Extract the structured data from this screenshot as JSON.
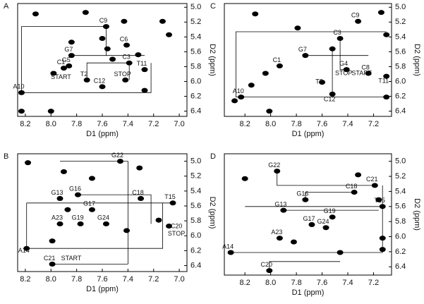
{
  "chart_data": [
    {
      "type": "scatter",
      "panel": "A",
      "xlabel": "D1 (ppm)",
      "ylabel": "D2 (ppm)",
      "color": "#000000",
      "xlim": [
        8.26,
        6.94
      ],
      "ylim": [
        4.95,
        6.47
      ],
      "xticks": [
        8.2,
        {
          "value": 8,
          "label": "8.0"
        },
        7.8,
        7.6,
        7.4,
        7.2,
        {
          "value": 7,
          "label": "7.0"
        }
      ],
      "yticks": [
        {
          "value": 5,
          "label": "5.0"
        },
        5.2,
        5.4,
        5.6,
        5.8,
        {
          "value": 6,
          "label": "6.0"
        },
        6.2,
        6.4
      ],
      "x": [
        8.23,
        8.0,
        8.23,
        7.98,
        7.9,
        7.84,
        7.86,
        7.57,
        7.56,
        7.41,
        7.39,
        7.32,
        7.27,
        7.6,
        7.72,
        7.42,
        7.27,
        7.08,
        7.13,
        7.43,
        7.73,
        8.12,
        7.84,
        7.6,
        7.52
      ],
      "y": [
        6.4,
        6.4,
        6.15,
        5.89,
        5.82,
        5.65,
        5.79,
        5.26,
        5.56,
        5.51,
        5.75,
        5.64,
        5.84,
        6.07,
        5.98,
        5.98,
        6.12,
        5.37,
        5.19,
        5.19,
        5.07,
        5.09,
        5.47,
        5.42,
        5.7
      ],
      "walk": {
        "x": [
          8.23,
          8.23,
          7.57,
          7.57,
          null,
          7.84,
          7.27,
          null,
          8.23,
          7.22,
          7.22,
          null,
          7.72,
          7.72,
          7.39,
          7.39
        ],
        "y": [
          6.15,
          5.26,
          5.26,
          5.65,
          null,
          5.65,
          5.65,
          null,
          6.15,
          6.15,
          5.75,
          null,
          5.98,
          5.75,
          5.75,
          5.98
        ]
      },
      "labels": [
        {
          "text": "A10",
          "x": 8.23,
          "y": 6.15
        },
        {
          "text": "C9",
          "x": 7.57,
          "y": 5.26
        },
        {
          "text": "G7",
          "x": 7.84,
          "y": 5.65
        },
        {
          "text": "C1",
          "x": 7.9,
          "y": 5.82
        },
        {
          "text": "G5",
          "x": 7.86,
          "y": 5.79
        },
        {
          "text": "C6",
          "x": 7.41,
          "y": 5.51
        },
        {
          "text": "C3",
          "x": 7.39,
          "y": 5.75
        },
        {
          "text": "T11",
          "x": 7.27,
          "y": 5.84
        },
        {
          "text": "T2",
          "x": 7.72,
          "y": 5.98
        },
        {
          "text": "C12",
          "x": 7.6,
          "y": 6.07
        },
        {
          "text": "START",
          "x": 7.9,
          "y": 6.02
        },
        {
          "text": "STOP",
          "x": 7.42,
          "y": 5.98
        }
      ]
    },
    {
      "type": "scatter",
      "panel": "C",
      "xlabel": "D1 (ppm)",
      "ylabel": "D2 (ppm)",
      "color": "#000000",
      "xlim": [
        8.36,
        7.06
      ],
      "ylim": [
        4.95,
        6.47
      ],
      "xticks": [
        8.2,
        {
          "value": 8,
          "label": "8.0"
        },
        7.8,
        7.6,
        7.4,
        7.2
      ],
      "yticks": [
        {
          "value": 5,
          "label": "5.0"
        },
        5.2,
        5.4,
        5.6,
        5.8,
        {
          "value": 6,
          "label": "6.0"
        },
        6.2,
        6.4
      ],
      "x": [
        7.14,
        7.1,
        7.32,
        7.46,
        7.52,
        7.73,
        7.93,
        8.04,
        8.15,
        8.23,
        7.52,
        7.41,
        7.24,
        7.1,
        7.6,
        8.28,
        8.01,
        7.79,
        8.12,
        7.1
      ],
      "y": [
        5.07,
        5.37,
        5.19,
        5.42,
        5.56,
        5.65,
        5.79,
        5.89,
        6.05,
        6.21,
        6.17,
        5.84,
        5.89,
        6.21,
        6.01,
        6.26,
        6.4,
        5.28,
        5.09,
        5.93
      ],
      "walk": {
        "x": [
          7.1,
          8.27,
          8.27,
          7.1,
          null,
          7.73,
          7.24,
          null,
          7.52,
          7.52,
          null,
          7.46,
          7.46,
          7.41
        ],
        "y": [
          5.33,
          5.33,
          6.21,
          6.21,
          null,
          5.65,
          5.65,
          null,
          5.56,
          6.17,
          null,
          5.42,
          5.84,
          5.84
        ]
      },
      "labels": [
        {
          "text": "C9",
          "x": 7.32,
          "y": 5.19
        },
        {
          "text": "C3",
          "x": 7.46,
          "y": 5.42
        },
        {
          "text": "G7",
          "x": 7.73,
          "y": 5.65
        },
        {
          "text": "C1",
          "x": 7.93,
          "y": 5.79
        },
        {
          "text": "A10",
          "x": 8.23,
          "y": 6.21
        },
        {
          "text": "C12",
          "x": 7.52,
          "y": 6.32
        },
        {
          "text": "G4",
          "x": 7.41,
          "y": 5.84
        },
        {
          "text": "C8",
          "x": 7.24,
          "y": 5.89
        },
        {
          "text": "T11",
          "x": 7.1,
          "y": 6.07
        },
        {
          "text": "T2",
          "x": 7.6,
          "y": 6.08
        },
        {
          "text": "STOP",
          "x": 7.41,
          "y": 5.97
        },
        {
          "text": "START",
          "x": 7.27,
          "y": 5.97
        }
      ]
    },
    {
      "type": "scatter",
      "panel": "B",
      "xlabel": "D1 (ppm)",
      "ylabel": "D2 (ppm)",
      "color": "#000000",
      "xlim": [
        8.26,
        6.94
      ],
      "ylim": [
        4.9,
        6.48
      ],
      "xticks": [
        8.2,
        {
          "value": 8,
          "label": "8.0"
        },
        7.8,
        7.6,
        7.4,
        7.2,
        {
          "value": 7,
          "label": "7.0"
        }
      ],
      "yticks": [
        {
          "value": 5,
          "label": "5.0"
        },
        5.2,
        5.4,
        5.6,
        5.8,
        {
          "value": 6,
          "label": "6.0"
        },
        6.2,
        6.4
      ],
      "x": [
        7.46,
        7.31,
        7.9,
        7.93,
        7.79,
        7.3,
        7.05,
        7.68,
        7.87,
        7.77,
        7.93,
        7.57,
        7.08,
        7.99,
        8.19,
        7.99,
        7.41,
        7.68,
        8.18,
        7.16
      ],
      "y": [
        5.0,
        5.09,
        5.14,
        5.5,
        5.45,
        5.5,
        5.56,
        5.65,
        5.65,
        5.84,
        5.84,
        5.84,
        5.87,
        6.38,
        6.17,
        6.07,
        5.93,
        5.23,
        5.02,
        5.79
      ],
      "walk": {
        "x": [
          8.19,
          8.19,
          7.13,
          7.13,
          null,
          7.93,
          7.4,
          7.4,
          null,
          7.79,
          7.22,
          7.22,
          null,
          8.19,
          7.05,
          null,
          7.99,
          7.4
        ],
        "y": [
          5.56,
          6.17,
          6.17,
          5.56,
          null,
          5.0,
          5.0,
          6.38,
          null,
          5.45,
          5.45,
          5.84,
          null,
          5.56,
          5.56,
          null,
          6.38,
          6.38
        ]
      },
      "labels": [
        {
          "text": "G22",
          "x": 7.46,
          "y": 5.0
        },
        {
          "text": "G13",
          "x": 7.93,
          "y": 5.5
        },
        {
          "text": "G16",
          "x": 7.79,
          "y": 5.45
        },
        {
          "text": "C18",
          "x": 7.3,
          "y": 5.5
        },
        {
          "text": "T15",
          "x": 7.05,
          "y": 5.56
        },
        {
          "text": "G17",
          "x": 7.68,
          "y": 5.65
        },
        {
          "text": "G19",
          "x": 7.77,
          "y": 5.84
        },
        {
          "text": "A23",
          "x": 7.93,
          "y": 5.84
        },
        {
          "text": "G24",
          "x": 7.57,
          "y": 5.84
        },
        {
          "text": "C20",
          "x": 7.0,
          "y": 5.95
        },
        {
          "text": "STOP",
          "x": 7.0,
          "y": 6.05
        },
        {
          "text": "A14",
          "x": 8.19,
          "y": 6.28
        },
        {
          "text": "C21",
          "x": 7.99,
          "y": 6.38
        },
        {
          "text": "START",
          "x": 7.82,
          "y": 6.38
        }
      ]
    },
    {
      "type": "scatter",
      "panel": "D",
      "xlabel": "D1 (ppm)",
      "ylabel": "D2 (ppm)",
      "color": "#000000",
      "xlim": [
        8.36,
        7.06
      ],
      "ylim": [
        4.9,
        6.51
      ],
      "xticks": [
        8.2,
        {
          "value": 8,
          "label": "8.0"
        },
        7.8,
        7.6,
        7.4,
        7.2
      ],
      "yticks": [
        {
          "value": 5,
          "label": "5.0"
        },
        5.2,
        5.4,
        5.6,
        5.8,
        {
          "value": 6,
          "label": "6.0"
        },
        6.2,
        6.4
      ],
      "x": [
        7.95,
        7.19,
        7.16,
        7.35,
        7.13,
        7.73,
        7.9,
        7.52,
        7.68,
        7.57,
        7.93,
        8.31,
        8.01,
        7.13,
        7.13,
        7.46,
        8.2,
        7.32,
        7.82
      ],
      "y": [
        5.13,
        5.32,
        5.51,
        5.41,
        5.6,
        5.51,
        5.65,
        5.74,
        5.84,
        5.88,
        6.02,
        6.21,
        6.45,
        6.02,
        6.17,
        6.21,
        5.23,
        5.18,
        6.07
      ],
      "walk": {
        "x": [
          8.31,
          7.13,
          7.13,
          null,
          8.2,
          7.13,
          null,
          7.95,
          7.95,
          7.19,
          null,
          8.01,
          8.01,
          7.46,
          null,
          7.9,
          7.16,
          null,
          7.73,
          7.73,
          7.35
        ],
        "y": [
          6.21,
          6.21,
          5.32,
          null,
          5.6,
          5.6,
          null,
          5.13,
          5.32,
          5.32,
          null,
          6.45,
          6.33,
          6.33,
          null,
          5.65,
          5.65,
          null,
          5.51,
          5.41,
          5.41
        ]
      },
      "labels": [
        {
          "text": "G22",
          "x": 7.95,
          "y": 5.13
        },
        {
          "text": "C21",
          "x": 7.19,
          "y": 5.32
        },
        {
          "text": "C18",
          "x": 7.35,
          "y": 5.41
        },
        {
          "text": "T15",
          "x": 7.13,
          "y": 5.6
        },
        {
          "text": "G16",
          "x": 7.73,
          "y": 5.51
        },
        {
          "text": "G13",
          "x": 7.9,
          "y": 5.65
        },
        {
          "text": "G19",
          "x": 7.52,
          "y": 5.74
        },
        {
          "text": "G17",
          "x": 7.68,
          "y": 5.84
        },
        {
          "text": "G24",
          "x": 7.57,
          "y": 5.88
        },
        {
          "text": "A23",
          "x": 7.93,
          "y": 6.02
        },
        {
          "text": "A14",
          "x": 8.31,
          "y": 6.21
        },
        {
          "text": "C20",
          "x": 8.01,
          "y": 6.45
        }
      ]
    }
  ]
}
